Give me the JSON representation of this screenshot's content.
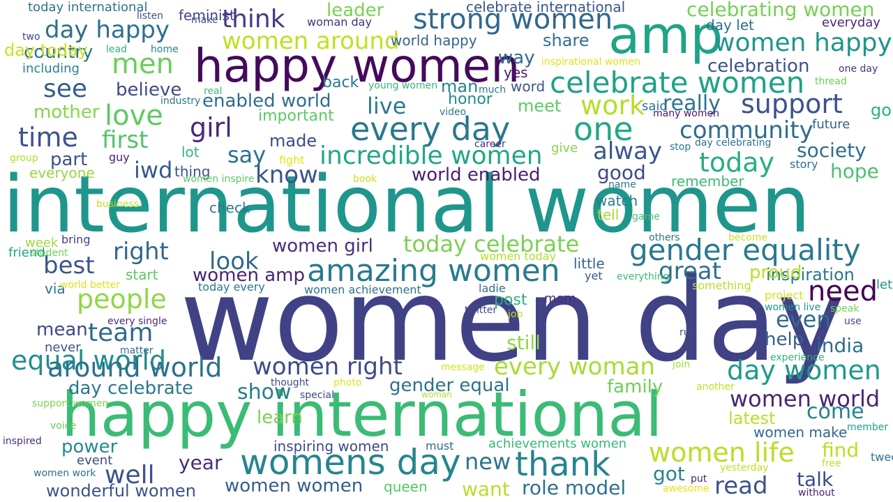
{
  "words": [
    {
      "text": "women day",
      "color": "#404285"
    },
    {
      "text": "international women",
      "color": "#1f968b"
    },
    {
      "text": "happy international",
      "color": "#3bbb75"
    },
    {
      "text": "happy women",
      "color": "#450a5c"
    },
    {
      "text": "amp",
      "color": "#20a386"
    },
    {
      "text": "womens day",
      "color": "#25858e"
    },
    {
      "text": "every day",
      "color": "#2a788e"
    },
    {
      "text": "amazing women",
      "color": "#2a7a8e"
    },
    {
      "text": "one",
      "color": "#22a884"
    },
    {
      "text": "thank",
      "color": "#25848e"
    },
    {
      "text": "celebrate women",
      "color": "#1fa287"
    },
    {
      "text": "strong women",
      "color": "#31688e"
    },
    {
      "text": "gender equality",
      "color": "#2a788e"
    },
    {
      "text": "women happy",
      "color": "#1f958b"
    },
    {
      "text": "equal world",
      "color": "#218f8d"
    },
    {
      "text": "around world",
      "color": "#2d708e"
    },
    {
      "text": "support",
      "color": "#3b528b"
    },
    {
      "text": "need",
      "color": "#440154"
    },
    {
      "text": "incredible women",
      "color": "#22a785"
    },
    {
      "text": "today",
      "color": "#28ae80"
    },
    {
      "text": "day women",
      "color": "#1e9b8a"
    },
    {
      "text": "women right",
      "color": "#3e4a89"
    },
    {
      "text": "every woman",
      "color": "#a8db34"
    },
    {
      "text": "women life",
      "color": "#b8de29"
    },
    {
      "text": "people",
      "color": "#8fd744"
    },
    {
      "text": "love",
      "color": "#5ec962"
    },
    {
      "text": "team",
      "color": "#31688e"
    },
    {
      "text": "community",
      "color": "#2f6c8e"
    },
    {
      "text": "work",
      "color": "#b5de2b"
    },
    {
      "text": "time",
      "color": "#3b528b"
    },
    {
      "text": "day happy",
      "color": "#2d708e"
    },
    {
      "text": "well",
      "color": "#3a538b"
    },
    {
      "text": "men",
      "color": "#6ccd5a"
    },
    {
      "text": "women around",
      "color": "#c2df23"
    },
    {
      "text": "celebrating women",
      "color": "#75d054"
    },
    {
      "text": "today celebrate",
      "color": "#7ad151"
    },
    {
      "text": "women world",
      "color": "#482475"
    },
    {
      "text": "alway",
      "color": "#39558c"
    },
    {
      "text": "girl",
      "color": "#482878"
    },
    {
      "text": "great",
      "color": "#2e6f8e"
    },
    {
      "text": "first",
      "color": "#52c569"
    },
    {
      "text": "think",
      "color": "#443983"
    },
    {
      "text": "see",
      "color": "#365d8d"
    },
    {
      "text": "right",
      "color": "#31688e"
    },
    {
      "text": "look",
      "color": "#31688e"
    },
    {
      "text": "know",
      "color": "#3b528b"
    },
    {
      "text": "iwd",
      "color": "#38588c"
    },
    {
      "text": "best",
      "color": "#39568c"
    },
    {
      "text": "read",
      "color": "#3b528b"
    },
    {
      "text": "really",
      "color": "#2c738e"
    },
    {
      "text": "even",
      "color": "#2f6b8e"
    },
    {
      "text": "come",
      "color": "#26818e"
    },
    {
      "text": "say",
      "color": "#2d718e"
    },
    {
      "text": "show",
      "color": "#287d8e"
    },
    {
      "text": "live",
      "color": "#287c8e"
    },
    {
      "text": "new",
      "color": "#2c738e"
    },
    {
      "text": "society",
      "color": "#2f6c8e"
    },
    {
      "text": "hope",
      "color": "#4ac16d"
    },
    {
      "text": "good",
      "color": "#3e4989"
    },
    {
      "text": "day celebrate",
      "color": "#2a788e"
    },
    {
      "text": "gender equal",
      "color": "#2c728e"
    },
    {
      "text": "women girl",
      "color": "#472d7b"
    },
    {
      "text": "women amp",
      "color": "#482475"
    },
    {
      "text": "leader",
      "color": "#7ad151"
    },
    {
      "text": "celebration",
      "color": "#3b528b"
    },
    {
      "text": "enabled world",
      "color": "#2e6d8e"
    },
    {
      "text": "world enabled",
      "color": "#481f70"
    },
    {
      "text": "inspiration",
      "color": "#2a778e"
    },
    {
      "text": "mother",
      "color": "#85d54a"
    },
    {
      "text": "country",
      "color": "#2c728e"
    },
    {
      "text": "believe",
      "color": "#3e4a89"
    },
    {
      "text": "part",
      "color": "#3b528b"
    },
    {
      "text": "mean",
      "color": "#3f4788"
    },
    {
      "text": "help",
      "color": "#34608d"
    },
    {
      "text": "india",
      "color": "#2e6e8e"
    },
    {
      "text": "family",
      "color": "#6ccd5a"
    },
    {
      "text": "talk",
      "color": "#3e4989"
    },
    {
      "text": "find",
      "color": "#bade28"
    },
    {
      "text": "got",
      "color": "#25848e"
    },
    {
      "text": "year",
      "color": "#472c7a"
    },
    {
      "text": "still",
      "color": "#8fd744"
    },
    {
      "text": "want",
      "color": "#b5de2b"
    },
    {
      "text": "role model",
      "color": "#2c728e"
    },
    {
      "text": "wonderful women",
      "color": "#3b528b"
    },
    {
      "text": "women women",
      "color": "#365c8d"
    },
    {
      "text": "power",
      "color": "#238a8d"
    },
    {
      "text": "learn",
      "color": "#7ad151"
    },
    {
      "text": "latest",
      "color": "#b8de29"
    },
    {
      "text": "women make",
      "color": "#31688e"
    },
    {
      "text": "meet",
      "color": "#5ec962"
    },
    {
      "text": "share",
      "color": "#2d708e"
    },
    {
      "text": "way",
      "color": "#31688e"
    },
    {
      "text": "made",
      "color": "#3e4989"
    },
    {
      "text": "man",
      "color": "#26818e"
    },
    {
      "text": "going",
      "color": "#29af7f"
    },
    {
      "text": "proud",
      "color": "#bade28"
    },
    {
      "text": "inspiring women",
      "color": "#3e4989"
    },
    {
      "text": "achievements women",
      "color": "#35b779"
    },
    {
      "text": "post",
      "color": "#2ab07f"
    },
    {
      "text": "honor",
      "color": "#238a8d"
    },
    {
      "text": "important",
      "color": "#5ec962"
    },
    {
      "text": "everyone",
      "color": "#95d840"
    },
    {
      "text": "little",
      "color": "#33638d"
    },
    {
      "text": "watch",
      "color": "#287c8e"
    },
    {
      "text": "tell",
      "color": "#a8db34"
    },
    {
      "text": "remember",
      "color": "#3bbb75"
    },
    {
      "text": "future",
      "color": "#33628d"
    },
    {
      "text": "story",
      "color": "#2d718e"
    },
    {
      "text": "everyday",
      "color": "#482878"
    },
    {
      "text": "day let",
      "color": "#2f6c8e"
    },
    {
      "text": "celebrate international",
      "color": "#3a548c"
    },
    {
      "text": "world happy",
      "color": "#33638d"
    },
    {
      "text": "woman day",
      "color": "#472f7d"
    },
    {
      "text": "today international",
      "color": "#2c738e"
    },
    {
      "text": "listen",
      "color": "#3b528b"
    },
    {
      "text": "make",
      "color": "#3f4788"
    },
    {
      "text": "two",
      "color": "#3f4889"
    },
    {
      "text": "lead",
      "color": "#2fb47c"
    },
    {
      "text": "home",
      "color": "#26828e"
    },
    {
      "text": "including",
      "color": "#25848e"
    },
    {
      "text": "feminist",
      "color": "#3e4989"
    },
    {
      "text": "day today",
      "color": "#c8e020"
    },
    {
      "text": "yes",
      "color": "#481a6c"
    },
    {
      "text": "word",
      "color": "#3b528b"
    },
    {
      "text": "much",
      "color": "#2a768e"
    },
    {
      "text": "young women",
      "color": "#35b779"
    },
    {
      "text": "back",
      "color": "#2a768e"
    },
    {
      "text": "inspirational women",
      "color": "#dde318"
    },
    {
      "text": "one day",
      "color": "#46327e"
    },
    {
      "text": "thread",
      "color": "#6ece58"
    },
    {
      "text": "real",
      "color": "#3dbc74"
    },
    {
      "text": "industry",
      "color": "#2c738e"
    },
    {
      "text": "video",
      "color": "#2a768e"
    },
    {
      "text": "said",
      "color": "#2c728e"
    },
    {
      "text": "many women",
      "color": "#481769"
    },
    {
      "text": "day celebrating",
      "color": "#2d708e"
    },
    {
      "text": "career",
      "color": "#472f7d"
    },
    {
      "text": "give",
      "color": "#84d44b"
    },
    {
      "text": "stop",
      "color": "#2a778e"
    },
    {
      "text": "group",
      "color": "#b2dd2d"
    },
    {
      "text": "guy",
      "color": "#482475"
    },
    {
      "text": "fight",
      "color": "#e2e418"
    },
    {
      "text": "lot",
      "color": "#35b779"
    },
    {
      "text": "thing",
      "color": "#3b528b"
    },
    {
      "text": "book",
      "color": "#c8e020"
    },
    {
      "text": "name",
      "color": "#2b748e"
    },
    {
      "text": "game",
      "color": "#46c06f"
    },
    {
      "text": "business",
      "color": "#c0df25"
    },
    {
      "text": "women inspire",
      "color": "#5ec962"
    },
    {
      "text": "check",
      "color": "#2a788e"
    },
    {
      "text": "week",
      "color": "#a0da39"
    },
    {
      "text": "bring",
      "color": "#433e85"
    },
    {
      "text": "friend",
      "color": "#20a386"
    },
    {
      "text": "student",
      "color": "#6ece58"
    },
    {
      "text": "via",
      "color": "#2d708e"
    },
    {
      "text": "world better",
      "color": "#dde318"
    },
    {
      "text": "start",
      "color": "#5ec962"
    },
    {
      "text": "today every",
      "color": "#2a778e"
    },
    {
      "text": "women achievement",
      "color": "#2e6f8e"
    },
    {
      "text": "ladie",
      "color": "#2e6e8e"
    },
    {
      "text": "yet",
      "color": "#3b528b"
    },
    {
      "text": "everything",
      "color": "#3bbb75"
    },
    {
      "text": "others",
      "color": "#2d708e"
    },
    {
      "text": "become",
      "color": "#cae11f"
    },
    {
      "text": "something",
      "color": "#bade28"
    },
    {
      "text": "project",
      "color": "#d2e21b"
    },
    {
      "text": "women live",
      "color": "#1f958b"
    },
    {
      "text": "speak",
      "color": "#75d054"
    },
    {
      "text": "use",
      "color": "#3f4788"
    },
    {
      "text": "let celebrate",
      "color": "#21918c"
    },
    {
      "text": "women today",
      "color": "#b5de2b"
    },
    {
      "text": "every single",
      "color": "#482878"
    },
    {
      "text": "job",
      "color": "#c2df23"
    },
    {
      "text": "mom",
      "color": "#472d7b"
    },
    {
      "text": "twitter",
      "color": "#3f4889"
    },
    {
      "text": "run",
      "color": "#3e4a89"
    },
    {
      "text": "never",
      "color": "#3b528b"
    },
    {
      "text": "matter",
      "color": "#2e6f8e"
    },
    {
      "text": "experience",
      "color": "#2fb47c"
    },
    {
      "text": "join",
      "color": "#a5db36"
    },
    {
      "text": "message",
      "color": "#d2e21b"
    },
    {
      "text": "thought",
      "color": "#3e4a89"
    },
    {
      "text": "photo",
      "color": "#e2e418"
    },
    {
      "text": "another",
      "color": "#c2df23"
    },
    {
      "text": "special",
      "color": "#3e4989"
    },
    {
      "text": "woman",
      "color": "#b2dd2d"
    },
    {
      "text": "support women",
      "color": "#7ad151"
    },
    {
      "text": "voice",
      "color": "#5ec962"
    },
    {
      "text": "must",
      "color": "#31688e"
    },
    {
      "text": "member",
      "color": "#1fa187"
    },
    {
      "text": "event",
      "color": "#3e4989"
    },
    {
      "text": "free",
      "color": "#c2df23"
    },
    {
      "text": "inspired",
      "color": "#472d7b"
    },
    {
      "text": "women work",
      "color": "#2d718e"
    },
    {
      "text": "queen",
      "color": "#56c667"
    },
    {
      "text": "yesterday",
      "color": "#c2df23"
    },
    {
      "text": "put",
      "color": "#482475"
    },
    {
      "text": "awesome",
      "color": "#e5e419"
    },
    {
      "text": "tweet",
      "color": "#2d708e"
    },
    {
      "text": "without",
      "color": "#482475"
    }
  ]
}
